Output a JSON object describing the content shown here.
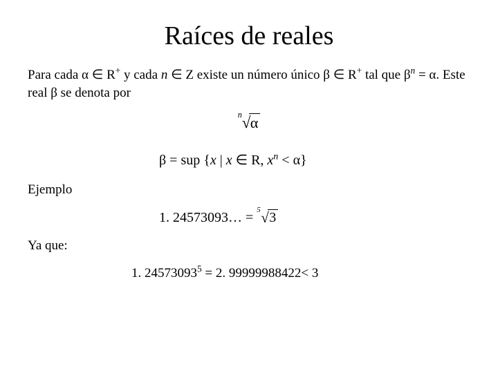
{
  "title": "Raíces de reales",
  "para1_pre": "Para cada α ∈ R",
  "para1_sup1": "+",
  "para1_mid1": " y cada ",
  "para1_n": "n",
  "para1_mid2": " ∈ Z existe un número único β ∈ R",
  "para1_sup2": "+",
  "para1_mid3": " tal que β",
  "para1_supn": "n",
  "para1_end": " = α. Este real β se denota por",
  "root1_idx": "n",
  "root1_rad": "α",
  "beta_eq": "β = sup {",
  "beta_x1": "x",
  "beta_bar": " | ",
  "beta_x2": "x",
  "beta_in": " ∈ R, ",
  "beta_x3": "x",
  "beta_supn": "n",
  "beta_end": " < α}",
  "ejemplo": "Ejemplo",
  "ex_num": "1. 24573093…  = ",
  "root2_idx": "5",
  "root2_rad": "3",
  "yaque": "Ya que:",
  "final_base": "1. 24573093",
  "final_exp": "5",
  "final_eq": "  =  2. 99999988422< 3",
  "fontsize_title": 38,
  "fontsize_body": 19,
  "color_text": "#000000",
  "color_bg": "#ffffff"
}
